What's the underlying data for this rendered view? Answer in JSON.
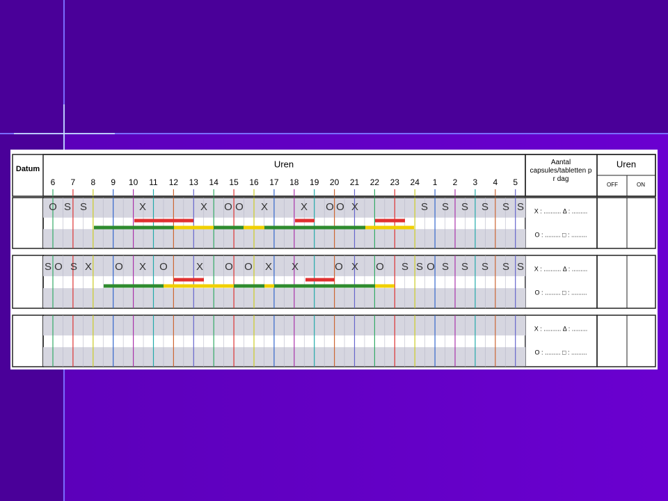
{
  "header": {
    "datum": "Datum",
    "uren": "Uren",
    "hours": [
      "6",
      "7",
      "8",
      "9",
      "10",
      "11",
      "12",
      "13",
      "14",
      "15",
      "16",
      "17",
      "18",
      "19",
      "20",
      "21",
      "22",
      "23",
      "24",
      "1",
      "2",
      "3",
      "4",
      "5"
    ],
    "aantal": "Aantal capsules/tabletten per dag",
    "uren_right": "Uren",
    "off": "OFF",
    "on": "ON"
  },
  "rows": [
    {
      "symbols": [
        "O",
        "S",
        "S",
        "X",
        "X",
        "O",
        "O",
        "X",
        "X",
        "O",
        "O",
        "X",
        "S",
        "S",
        "S",
        "S",
        "S",
        "S"
      ],
      "legend": [
        "X : .......... Δ : .........",
        "O : ......... □ : ........."
      ]
    },
    {
      "symbols": [
        "S",
        "O",
        "S",
        "X",
        "O",
        "X",
        "O",
        "X",
        "O",
        "O",
        "X",
        "X",
        "O",
        "X",
        "O",
        "S",
        "S",
        "O",
        "S",
        "S",
        "S",
        "S",
        "S"
      ],
      "legend": [
        "X : .......... Δ : .........",
        "O : ......... □ : ........."
      ]
    },
    {
      "symbols": [],
      "legend": [
        "X : .......... Δ : .........",
        "O : ......... □ : ........."
      ]
    }
  ]
}
